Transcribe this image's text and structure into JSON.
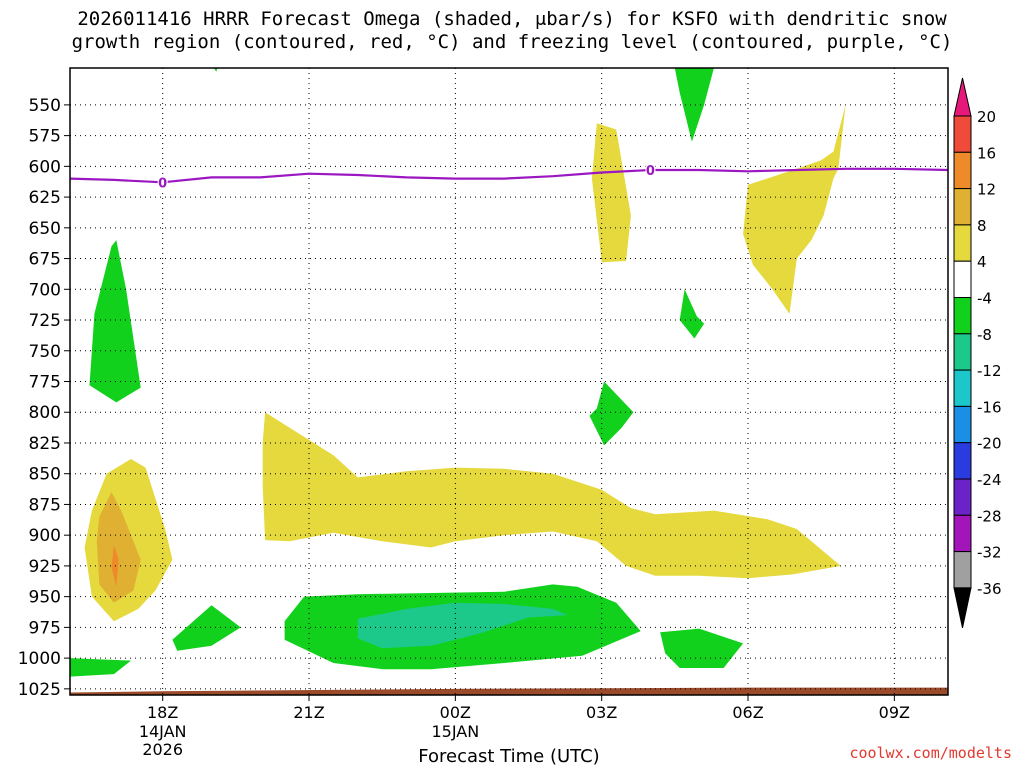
{
  "title": "2026011416 HRRR Forecast Omega (shaded, μbar/s) for KSFO with dendritic snow\ngrowth region (contoured, red, °C) and freezing level (contoured, purple, °C)",
  "credit": "coolwx.com/modelts",
  "chart_data": {
    "type": "contour",
    "title": "2026011416 HRRR Forecast Omega (shaded, μbar/s) for KSFO with dendritic snow growth region (contoured, red, °C) and freezing level (contoured, purple, °C)",
    "xlabel": "Forecast Time (UTC)",
    "ylabel": "",
    "x_axis": {
      "range_hours_utc": [
        16.1,
        34.1
      ],
      "ticks": [
        {
          "hour": 18,
          "label": "18Z",
          "sub": [
            "14JAN",
            "2026"
          ]
        },
        {
          "hour": 21,
          "label": "21Z",
          "sub": []
        },
        {
          "hour": 24,
          "label": "00Z",
          "sub": [
            "15JAN"
          ]
        },
        {
          "hour": 27,
          "label": "03Z",
          "sub": []
        },
        {
          "hour": 30,
          "label": "06Z",
          "sub": []
        },
        {
          "hour": 33,
          "label": "09Z",
          "sub": []
        }
      ]
    },
    "y_axis": {
      "units": "hPa",
      "range": [
        1030,
        520
      ],
      "ticks": [
        1025,
        1000,
        975,
        950,
        925,
        900,
        875,
        850,
        825,
        800,
        775,
        750,
        725,
        700,
        675,
        650,
        625,
        600,
        575,
        550
      ]
    },
    "grid": true,
    "colorbar": {
      "placement": "right",
      "labels": [
        "20",
        "16",
        "12",
        "8",
        "4",
        "-4",
        "-8",
        "-12",
        "-16",
        "-20",
        "-24",
        "-28",
        "-32",
        "-36"
      ],
      "levels": [
        {
          "from": 20,
          "to": 99,
          "color": "#e6197a"
        },
        {
          "from": 16,
          "to": 20,
          "color": "#f04a3a"
        },
        {
          "from": 12,
          "to": 16,
          "color": "#ed8b2b"
        },
        {
          "from": 8,
          "to": 12,
          "color": "#e0b032"
        },
        {
          "from": 4,
          "to": 8,
          "color": "#e5d93e"
        },
        {
          "from": -4,
          "to": 4,
          "color": "#ffffff"
        },
        {
          "from": -8,
          "to": -4,
          "color": "#11d11c"
        },
        {
          "from": -12,
          "to": -8,
          "color": "#1dc98a"
        },
        {
          "from": -16,
          "to": -12,
          "color": "#1cc7c9"
        },
        {
          "from": -20,
          "to": -16,
          "color": "#1b8fe6"
        },
        {
          "from": -24,
          "to": -20,
          "color": "#2a3ce0"
        },
        {
          "from": -28,
          "to": -24,
          "color": "#6b23c8"
        },
        {
          "from": -32,
          "to": -28,
          "color": "#a216b9"
        },
        {
          "from": -36,
          "to": -32,
          "color": "#a0a0a0"
        },
        {
          "from": -99,
          "to": -36,
          "color": "#000000"
        }
      ]
    },
    "freezing_level": {
      "color": "#9a17c2",
      "label": "0",
      "label_positions_hours": [
        18,
        28
      ],
      "points": [
        [
          16.1,
          610
        ],
        [
          17,
          611
        ],
        [
          18,
          613
        ],
        [
          19,
          609
        ],
        [
          20,
          609
        ],
        [
          21,
          606
        ],
        [
          22,
          607
        ],
        [
          23,
          609
        ],
        [
          24,
          610
        ],
        [
          25,
          610
        ],
        [
          26,
          608
        ],
        [
          27,
          605
        ],
        [
          28,
          603
        ],
        [
          29,
          603
        ],
        [
          30,
          604
        ],
        [
          31,
          603
        ],
        [
          32,
          602
        ],
        [
          33,
          602
        ],
        [
          34.1,
          603
        ]
      ]
    },
    "ground": {
      "color": "#9b4a2a",
      "points": [
        [
          16.1,
          1028
        ],
        [
          18,
          1027
        ],
        [
          24,
          1025
        ],
        [
          30,
          1024
        ],
        [
          34.1,
          1024
        ]
      ]
    },
    "shaded_regions": [
      {
        "level": "-8..-4",
        "points": [
          [
            19.05,
            520
          ],
          [
            19.12,
            520
          ],
          [
            19.1,
            523
          ]
        ]
      },
      {
        "level": "-8..-4",
        "points": [
          [
            28.5,
            520
          ],
          [
            29.3,
            520
          ],
          [
            29.1,
            550
          ],
          [
            28.85,
            580
          ],
          [
            28.6,
            540
          ]
        ]
      },
      {
        "level": "-8..-4",
        "points": [
          [
            16.95,
            665
          ],
          [
            17.05,
            660
          ],
          [
            17.25,
            700
          ],
          [
            17.55,
            780
          ],
          [
            17.05,
            792
          ],
          [
            16.5,
            778
          ],
          [
            16.6,
            720
          ]
        ]
      },
      {
        "level": "-8..-4",
        "points": [
          [
            28.9,
            740
          ],
          [
            29.1,
            728
          ],
          [
            28.95,
            722
          ],
          [
            28.7,
            700
          ],
          [
            28.6,
            725
          ]
        ]
      },
      {
        "level": "-8..-4",
        "points": [
          [
            26.9,
            797
          ],
          [
            27.05,
            775
          ],
          [
            27.65,
            800
          ],
          [
            27.4,
            813
          ],
          [
            27.05,
            827
          ],
          [
            26.75,
            803
          ]
        ]
      },
      {
        "level": "-8..-4",
        "points": [
          [
            16.1,
            1000
          ],
          [
            17.35,
            1002
          ],
          [
            17.0,
            1013
          ],
          [
            16.1,
            1015
          ]
        ]
      },
      {
        "level": "-8..-4",
        "points": [
          [
            18.2,
            985
          ],
          [
            19.0,
            957
          ],
          [
            19.6,
            975
          ],
          [
            19.0,
            990
          ],
          [
            18.3,
            994
          ]
        ]
      },
      {
        "level": "-8..-4",
        "points": [
          [
            20.5,
            970
          ],
          [
            20.9,
            950
          ],
          [
            22.0,
            948
          ],
          [
            23.5,
            947
          ],
          [
            25.0,
            946
          ],
          [
            26.0,
            940
          ],
          [
            26.5,
            942
          ],
          [
            27.3,
            955
          ],
          [
            27.8,
            978
          ],
          [
            26.6,
            998
          ],
          [
            25.0,
            1004
          ],
          [
            23.5,
            1009
          ],
          [
            22.5,
            1009
          ],
          [
            21.5,
            1004
          ],
          [
            20.5,
            985
          ]
        ]
      },
      {
        "level": "-8..-4",
        "points": [
          [
            28.2,
            979
          ],
          [
            29.0,
            976
          ],
          [
            29.9,
            988
          ],
          [
            29.5,
            1008
          ],
          [
            28.6,
            1008
          ],
          [
            28.3,
            996
          ]
        ]
      },
      {
        "level": "-12..-8",
        "points": [
          [
            22.0,
            968
          ],
          [
            23.0,
            960
          ],
          [
            24.0,
            955
          ],
          [
            25.0,
            956
          ],
          [
            26.0,
            960
          ],
          [
            26.3,
            965
          ],
          [
            25.5,
            967
          ],
          [
            24.5,
            980
          ],
          [
            23.5,
            990
          ],
          [
            22.5,
            992
          ],
          [
            22.0,
            984
          ]
        ]
      },
      {
        "level": "4..8",
        "points": [
          [
            26.9,
            565
          ],
          [
            27.3,
            570
          ],
          [
            27.6,
            640
          ],
          [
            27.5,
            677
          ],
          [
            27.0,
            678
          ],
          [
            26.95,
            660
          ],
          [
            26.8,
            610
          ]
        ]
      },
      {
        "level": "4..8",
        "points": [
          [
            30.0,
            615
          ],
          [
            31.0,
            602
          ],
          [
            31.5,
            595
          ],
          [
            31.75,
            588
          ],
          [
            32.0,
            550
          ],
          [
            31.85,
            602
          ],
          [
            31.75,
            610
          ],
          [
            31.55,
            640
          ],
          [
            31.3,
            660
          ],
          [
            31.0,
            675
          ],
          [
            30.85,
            720
          ],
          [
            30.5,
            700
          ],
          [
            30.1,
            680
          ],
          [
            29.9,
            655
          ]
        ]
      },
      {
        "level": "4..8",
        "points": [
          [
            20.05,
            825
          ],
          [
            20.1,
            800
          ],
          [
            20.7,
            815
          ],
          [
            21.5,
            835
          ],
          [
            22.0,
            853
          ],
          [
            23.0,
            848
          ],
          [
            24.0,
            845
          ],
          [
            25.0,
            846
          ],
          [
            26.0,
            850
          ],
          [
            27.0,
            863
          ],
          [
            27.6,
            878
          ],
          [
            28.1,
            883
          ],
          [
            29.3,
            880
          ],
          [
            30.4,
            887
          ],
          [
            31.0,
            895
          ],
          [
            31.3,
            905
          ],
          [
            31.6,
            915
          ],
          [
            31.9,
            925
          ],
          [
            30.9,
            932
          ],
          [
            30.0,
            935
          ],
          [
            29.0,
            933
          ],
          [
            28.1,
            933
          ],
          [
            27.5,
            925
          ],
          [
            26.9,
            905
          ],
          [
            26.0,
            897
          ],
          [
            25.0,
            900
          ],
          [
            24.0,
            905
          ],
          [
            23.5,
            910
          ],
          [
            22.5,
            905
          ],
          [
            21.5,
            898
          ],
          [
            20.6,
            905
          ],
          [
            20.1,
            904
          ],
          [
            20.05,
            860
          ]
        ]
      },
      {
        "level": "4..8",
        "points": [
          [
            17.35,
            838
          ],
          [
            17.65,
            845
          ],
          [
            18.05,
            895
          ],
          [
            18.2,
            920
          ],
          [
            17.85,
            945
          ],
          [
            17.5,
            960
          ],
          [
            17.0,
            970
          ],
          [
            16.55,
            950
          ],
          [
            16.4,
            910
          ],
          [
            16.55,
            880
          ],
          [
            16.85,
            850
          ]
        ]
      },
      {
        "level": "8..12",
        "points": [
          [
            16.95,
            865
          ],
          [
            17.15,
            880
          ],
          [
            17.55,
            920
          ],
          [
            17.4,
            945
          ],
          [
            17.0,
            955
          ],
          [
            16.7,
            940
          ],
          [
            16.65,
            905
          ],
          [
            16.7,
            885
          ]
        ]
      },
      {
        "level": "12..16",
        "points": [
          [
            17.0,
            908
          ],
          [
            17.1,
            920
          ],
          [
            17.05,
            942
          ],
          [
            16.95,
            926
          ]
        ]
      }
    ]
  }
}
